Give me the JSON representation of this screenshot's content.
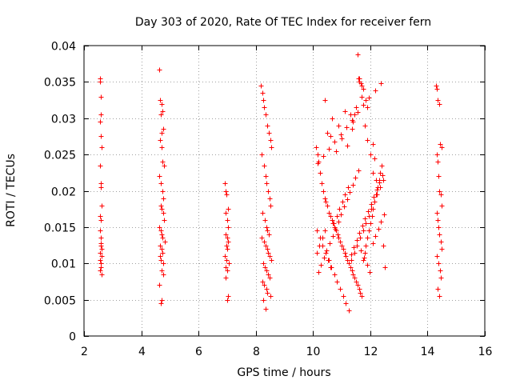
{
  "chart_data": {
    "type": "scatter",
    "title": "Day 303 of 2020, Rate Of TEC Index for receiver fern",
    "xlabel": "GPS time / hours",
    "ylabel": "ROTI / TECUs",
    "xlim": [
      2,
      16
    ],
    "ylim": [
      0,
      0.04
    ],
    "xticks": [
      2,
      4,
      6,
      8,
      10,
      12,
      14,
      16
    ],
    "xtick_labels": [
      "2",
      "4",
      "6",
      "8",
      "10",
      "12",
      "14",
      "16"
    ],
    "yticks": [
      0,
      0.005,
      0.01,
      0.015,
      0.02,
      0.025,
      0.03,
      0.035,
      0.04
    ],
    "ytick_labels": [
      "0",
      "0.005",
      "0.01",
      "0.015",
      "0.02",
      "0.025",
      "0.03",
      "0.035",
      "0.04"
    ],
    "grid": true,
    "marker": "+",
    "color": "#ff0000",
    "series": [
      {
        "x": [
          2.55,
          2.56,
          2.58,
          2.6,
          2.57,
          2.59,
          2.61,
          2.55,
          2.58,
          2.6,
          2.62,
          2.56,
          2.59,
          2.57,
          2.6,
          2.58,
          2.62,
          2.55,
          2.61,
          2.57,
          2.59,
          2.6,
          2.56,
          2.62,
          2.58,
          4.62,
          4.65,
          4.7,
          4.75,
          4.68,
          4.72,
          4.78,
          4.66,
          4.71,
          4.74,
          4.8,
          4.64,
          4.69,
          4.73,
          4.77,
          4.67,
          4.7,
          4.76,
          4.79,
          4.63,
          4.68,
          4.72,
          4.75,
          4.81,
          4.66,
          4.7,
          4.74,
          4.65,
          4.69,
          4.78,
          4.72,
          4.76,
          4.64,
          4.71,
          4.67,
          6.92,
          6.95,
          6.98,
          7.02,
          6.96,
          7.0,
          7.04,
          6.94,
          6.99,
          7.03,
          6.97,
          7.01,
          6.93,
          6.98,
          7.05,
          6.96,
          7.0,
          6.95,
          7.02,
          6.99,
          8.18,
          8.22,
          8.26,
          8.3,
          8.35,
          8.4,
          8.45,
          8.5,
          8.55,
          8.2,
          8.28,
          8.33,
          8.38,
          8.43,
          8.48,
          8.52,
          8.24,
          8.31,
          8.36,
          8.41,
          8.46,
          8.21,
          8.29,
          8.34,
          8.39,
          8.44,
          8.49,
          8.54,
          8.25,
          8.32,
          8.37,
          8.42,
          8.47,
          8.23,
          8.3,
          8.36,
          8.41,
          8.5,
          8.27,
          8.33,
          10.1,
          10.15,
          10.2,
          10.25,
          10.3,
          10.35,
          10.4,
          10.45,
          10.5,
          10.55,
          10.6,
          10.65,
          10.7,
          10.75,
          10.8,
          10.85,
          10.9,
          10.95,
          11.0,
          11.05,
          11.1,
          11.15,
          11.2,
          11.25,
          11.3,
          11.35,
          11.4,
          11.45,
          11.5,
          11.55,
          11.6,
          11.65,
          11.7,
          11.75,
          11.8,
          11.85,
          11.9,
          11.95,
          12.0,
          12.05,
          12.1,
          12.15,
          12.2,
          12.25,
          12.3,
          12.35,
          12.4,
          12.45,
          12.5,
          10.12,
          10.22,
          10.32,
          10.42,
          10.52,
          10.62,
          10.72,
          10.82,
          10.92,
          11.02,
          11.12,
          11.22,
          11.32,
          11.42,
          11.52,
          11.62,
          11.72,
          11.82,
          11.92,
          12.02,
          12.12,
          12.22,
          12.32,
          12.42,
          10.18,
          10.28,
          10.38,
          10.48,
          10.58,
          10.68,
          10.78,
          10.88,
          10.98,
          11.08,
          11.18,
          11.28,
          11.38,
          11.48,
          11.58,
          11.68,
          11.78,
          11.88,
          11.98,
          12.08,
          12.18,
          12.28,
          12.38,
          12.48,
          10.14,
          10.24,
          10.34,
          10.44,
          10.54,
          10.64,
          10.74,
          10.84,
          10.94,
          11.04,
          11.14,
          11.24,
          11.34,
          11.44,
          11.54,
          11.64,
          11.74,
          11.84,
          11.94,
          12.04,
          12.14,
          12.24,
          12.34,
          12.44,
          10.16,
          10.36,
          10.56,
          10.76,
          10.96,
          11.16,
          11.36,
          11.56,
          11.76,
          11.96,
          12.16,
          12.36,
          10.4,
          10.5,
          10.9,
          11.1,
          11.3,
          11.5,
          11.6,
          11.7,
          11.8,
          11.9,
          12.0,
          12.1,
          12.2,
          11.55,
          11.58,
          11.62,
          11.66,
          11.7,
          11.75,
          10.6,
          10.65,
          11.35,
          11.4,
          11.45,
          11.88,
          11.85,
          12.1,
          12.15,
          11.2,
          11.0,
          10.8,
          14.3,
          14.33,
          14.36,
          14.4,
          14.44,
          14.48,
          14.32,
          14.35,
          14.38,
          14.42,
          14.46,
          14.5,
          14.31,
          14.34,
          14.37,
          14.41,
          14.45,
          14.49,
          14.33,
          14.39,
          14.43,
          14.47,
          14.36,
          14.4
        ],
        "y": [
          0.0355,
          0.035,
          0.033,
          0.0305,
          0.0295,
          0.0275,
          0.026,
          0.0235,
          0.021,
          0.0205,
          0.018,
          0.0165,
          0.016,
          0.0145,
          0.0135,
          0.0125,
          0.012,
          0.0115,
          0.011,
          0.0105,
          0.01,
          0.0095,
          0.009,
          0.0085,
          0.0128,
          0.0367,
          0.0325,
          0.032,
          0.031,
          0.0305,
          0.028,
          0.0285,
          0.027,
          0.026,
          0.024,
          0.0235,
          0.022,
          0.021,
          0.02,
          0.019,
          0.018,
          0.0175,
          0.017,
          0.016,
          0.015,
          0.0145,
          0.014,
          0.0135,
          0.013,
          0.0125,
          0.012,
          0.0115,
          0.011,
          0.0105,
          0.01,
          0.009,
          0.0085,
          0.007,
          0.005,
          0.0045,
          0.021,
          0.02,
          0.0195,
          0.0175,
          0.017,
          0.016,
          0.015,
          0.014,
          0.0135,
          0.013,
          0.0125,
          0.012,
          0.011,
          0.0105,
          0.01,
          0.0095,
          0.009,
          0.008,
          0.0055,
          0.005,
          0.0345,
          0.0335,
          0.0325,
          0.0315,
          0.0305,
          0.029,
          0.028,
          0.027,
          0.026,
          0.025,
          0.0235,
          0.022,
          0.021,
          0.02,
          0.019,
          0.018,
          0.017,
          0.016,
          0.015,
          0.0145,
          0.014,
          0.0135,
          0.013,
          0.0125,
          0.012,
          0.0115,
          0.011,
          0.0105,
          0.01,
          0.0095,
          0.009,
          0.0085,
          0.008,
          0.0075,
          0.007,
          0.0065,
          0.006,
          0.0055,
          0.005,
          0.0038,
          0.026,
          0.025,
          0.024,
          0.0225,
          0.021,
          0.02,
          0.019,
          0.0185,
          0.018,
          0.017,
          0.0165,
          0.016,
          0.0155,
          0.015,
          0.0145,
          0.014,
          0.0135,
          0.013,
          0.0125,
          0.012,
          0.0115,
          0.011,
          0.0105,
          0.01,
          0.0095,
          0.009,
          0.0085,
          0.008,
          0.0075,
          0.007,
          0.0065,
          0.006,
          0.0055,
          0.0105,
          0.0115,
          0.0125,
          0.0135,
          0.0145,
          0.0155,
          0.0165,
          0.0175,
          0.0185,
          0.0195,
          0.0205,
          0.0215,
          0.0225,
          0.0235,
          0.0125,
          0.0095,
          0.0115,
          0.0125,
          0.0135,
          0.0145,
          0.0105,
          0.0095,
          0.0155,
          0.0165,
          0.0175,
          0.0185,
          0.0195,
          0.0205,
          0.0112,
          0.0122,
          0.0132,
          0.0142,
          0.0152,
          0.0162,
          0.0172,
          0.0182,
          0.0192,
          0.0202,
          0.0212,
          0.0222,
          0.0088,
          0.0098,
          0.0108,
          0.0118,
          0.0128,
          0.0138,
          0.0148,
          0.0158,
          0.0168,
          0.0178,
          0.0188,
          0.0198,
          0.0208,
          0.0218,
          0.0228,
          0.0118,
          0.0108,
          0.0098,
          0.0088,
          0.0128,
          0.0138,
          0.0148,
          0.0158,
          0.0168,
          0.0145,
          0.0135,
          0.0125,
          0.0115,
          0.0105,
          0.0095,
          0.0085,
          0.0075,
          0.0065,
          0.0055,
          0.0045,
          0.0035,
          0.0105,
          0.0115,
          0.0125,
          0.0135,
          0.0145,
          0.0155,
          0.0165,
          0.0175,
          0.0185,
          0.0195,
          0.0205,
          0.0215,
          0.0238,
          0.0248,
          0.0258,
          0.0268,
          0.0278,
          0.0288,
          0.0298,
          0.0308,
          0.0318,
          0.0328,
          0.0338,
          0.0348,
          0.0325,
          0.028,
          0.029,
          0.031,
          0.0305,
          0.0315,
          0.0355,
          0.033,
          0.029,
          0.027,
          0.025,
          0.0225,
          0.0215,
          0.0388,
          0.0355,
          0.035,
          0.0348,
          0.0345,
          0.034,
          0.0275,
          0.03,
          0.0285,
          0.0295,
          0.0305,
          0.0315,
          0.0325,
          0.0265,
          0.0245,
          0.0262,
          0.0272,
          0.0255,
          0.0345,
          0.034,
          0.0325,
          0.032,
          0.0265,
          0.026,
          0.025,
          0.024,
          0.022,
          0.02,
          0.0195,
          0.018,
          0.017,
          0.016,
          0.015,
          0.014,
          0.013,
          0.012,
          0.011,
          0.01,
          0.009,
          0.008,
          0.0065,
          0.0055
        ]
      }
    ]
  }
}
